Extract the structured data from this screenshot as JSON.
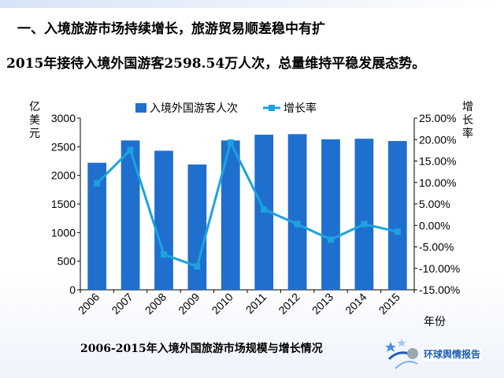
{
  "heading": "一、入境旅游市场持续增长，旅游贸易顺差稳中有扩",
  "subtitle": "2015年接待入境外国游客2598.54万人次，总量维持平稳发展态势。",
  "caption": "2006-2015年入境外国旅游市场规模与增长情况",
  "logo": {
    "text": "环球舆情报告"
  },
  "colors": {
    "bar": "#1f6fce",
    "line": "#1ba3e0",
    "axis": "#000000"
  },
  "chart_data": {
    "type": "bar",
    "categories": [
      "2006",
      "2007",
      "2008",
      "2009",
      "2010",
      "2011",
      "2012",
      "2013",
      "2014",
      "2015"
    ],
    "series": [
      {
        "name": "入境外国游客人次",
        "type": "bar",
        "axis": "left",
        "values": [
          2220,
          2610,
          2430,
          2190,
          2610,
          2710,
          2720,
          2630,
          2640,
          2600
        ]
      },
      {
        "name": "增长率",
        "type": "line",
        "axis": "right",
        "values": [
          0.0982,
          0.1758,
          -0.0676,
          -0.0955,
          0.193,
          0.0372,
          0.003,
          -0.033,
          0.003,
          -0.0145
        ]
      }
    ],
    "y_left": {
      "label": "亿美元",
      "ylim": [
        0,
        3000
      ],
      "ticks": [
        "3000",
        "2500",
        "2000",
        "1500",
        "1000",
        "500",
        "0"
      ]
    },
    "y_right": {
      "label": "增长率",
      "ylim": [
        -0.15,
        0.25
      ],
      "ticks": [
        "25.00%",
        "20.00%",
        "15.00%",
        "10.00%",
        "5.00%",
        "0.00%",
        "-5.00%",
        "-10.00%",
        "-15.00%"
      ]
    },
    "xlabel": "年份",
    "legend_position": "top",
    "grid": false
  }
}
